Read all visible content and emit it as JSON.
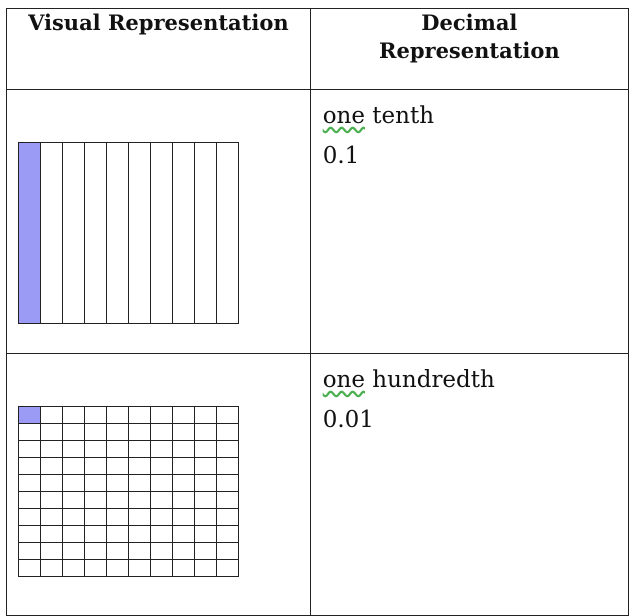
{
  "headers": {
    "visual": "Visual Representation",
    "decimal_line1": "Decimal",
    "decimal_line2": "Representation"
  },
  "rows": [
    {
      "word_first": "one",
      "word_rest": " tenth",
      "decimal": "0.1",
      "grid": {
        "rows": 1,
        "cols": 10,
        "shaded": 1
      }
    },
    {
      "word_first": "one",
      "word_rest": " hundredth",
      "decimal": "0.01",
      "grid": {
        "rows": 10,
        "cols": 10,
        "shaded": 1
      }
    }
  ],
  "colors": {
    "shaded": "#9b9bf6",
    "border": "#222222"
  }
}
